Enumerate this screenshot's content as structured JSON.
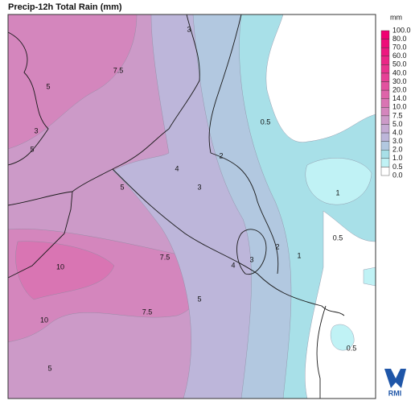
{
  "header": {
    "title": "Precip-12h Total Rain (mm)"
  },
  "legend": {
    "unit": "mm",
    "labels": [
      "100.0",
      "80.0",
      "70.0",
      "60.0",
      "50.0",
      "40.0",
      "30.0",
      "20.0",
      "14.0",
      "10.0",
      "7.5",
      "5.0",
      "4.0",
      "3.0",
      "2.0",
      "1.0",
      "0.5",
      "0.0"
    ],
    "colors": [
      "#f00072",
      "#ee0c79",
      "#ec187f",
      "#ea2686",
      "#e8348e",
      "#e64296",
      "#e2529f",
      "#de64a9",
      "#d975b3",
      "#d486bd",
      "#cc9ac8",
      "#c5aad3",
      "#bdb6da",
      "#b2c8e0",
      "#a8e0e8",
      "#c0f2f5",
      "#ffffff"
    ]
  },
  "contours": {
    "labels": [
      "3",
      "7.5",
      "5",
      "3",
      "5",
      "0.5",
      "2",
      "4",
      "3",
      "5",
      "1",
      "0.5",
      "2",
      "3",
      "4",
      "1",
      "7.5",
      "10",
      "7.5",
      "5",
      "10",
      "0.5",
      "5"
    ]
  },
  "logo": {
    "text": "RMI"
  }
}
